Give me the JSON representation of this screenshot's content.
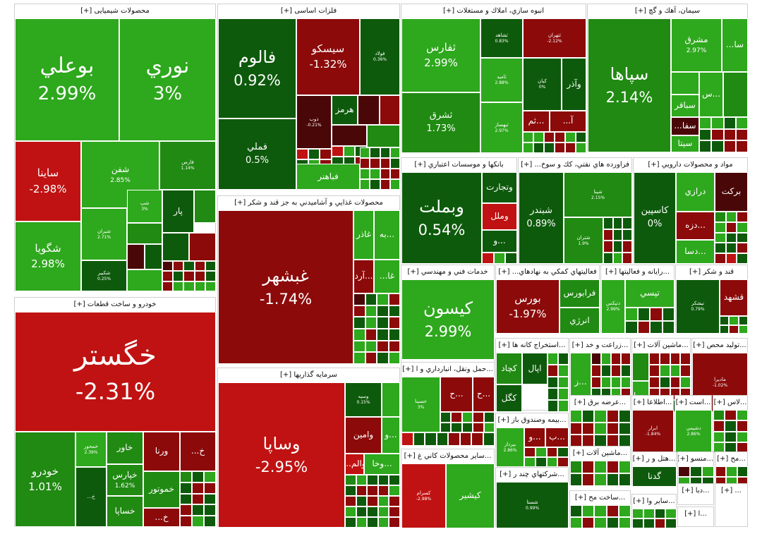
{
  "colors": {
    "pos_strong": "#2ea81d",
    "pos_mid": "#208a12",
    "pos_dark": "#0e5a0c",
    "neg_strong": "#c01212",
    "neg_mid": "#8c0a0a",
    "neg_dark": "#4a0707",
    "flat": "#3a3a3a",
    "bright_red": "#e20d0d"
  },
  "chart_data": {
    "type": "treemap",
    "sectors": [
      {
        "name": "محصولات شیمیایی",
        "expand": "[+]",
        "stocks": [
          {
            "symbol": "بوعلي",
            "change": "2.99%",
            "value": 2.99
          },
          {
            "symbol": "نوري",
            "change": "3%",
            "value": 3
          },
          {
            "symbol": "ساينا",
            "change": "-2.98%",
            "value": -2.98
          },
          {
            "symbol": "شفن",
            "change": "2.85%",
            "value": 2.85
          },
          {
            "symbol": "فارس",
            "change": "1.14%",
            "value": 1.14
          },
          {
            "symbol": "شگويا",
            "change": "2.98%",
            "value": 2.98
          },
          {
            "symbol": "شيران",
            "change": "2.71%",
            "value": 2.71
          },
          {
            "symbol": "شپ",
            "change": "3%",
            "value": 3
          },
          {
            "symbol": "پار",
            "change": "",
            "value": 0.5
          },
          {
            "symbol": "شکبير",
            "change": "0.25%",
            "value": 0.25
          }
        ]
      },
      {
        "name": "فلزات اساسی",
        "expand": "[+]",
        "stocks": [
          {
            "symbol": "فالوم",
            "change": "0.92%",
            "value": 0.92
          },
          {
            "symbol": "سيسكو",
            "change": "-1.32%",
            "value": -1.32
          },
          {
            "symbol": "فولاد",
            "change": "0.36%",
            "value": 0.36
          },
          {
            "symbol": "فملي",
            "change": "0.5%",
            "value": 0.5
          },
          {
            "symbol": "ذوب",
            "change": "-0.21%",
            "value": -0.21
          },
          {
            "symbol": "هرمز",
            "change": "",
            "value": 0.4
          },
          {
            "symbol": "فباهنر",
            "change": "",
            "value": 2.5
          }
        ]
      },
      {
        "name": "انبوه سازي، املاك و مستغلات",
        "expand": "[+]",
        "stocks": [
          {
            "symbol": "ثفارس",
            "change": "2.99%",
            "value": 2.99
          },
          {
            "symbol": "ثشاهد",
            "change": "0.83%",
            "value": 0.83
          },
          {
            "symbol": "ثتهران",
            "change": "-2.12%",
            "value": -2.12
          },
          {
            "symbol": "ثشرق",
            "change": "1.73%",
            "value": 1.73
          },
          {
            "symbol": "ثاميد",
            "change": "2.88%",
            "value": 2.88
          },
          {
            "symbol": "كيان",
            "change": "0%",
            "value": 0
          },
          {
            "symbol": "وآذر",
            "change": "",
            "value": 0.3
          },
          {
            "symbol": "ثبهساز",
            "change": "2.97%",
            "value": 2.97
          },
          {
            "symbol": "...ثم",
            "change": "",
            "value": -1.5
          },
          {
            "symbol": "آ...",
            "change": "",
            "value": -2
          }
        ]
      },
      {
        "name": "سيمان، آهك و گچ",
        "expand": "[+]",
        "stocks": [
          {
            "symbol": "سپاها",
            "change": "2.14%",
            "value": 2.14
          },
          {
            "symbol": "مشرق",
            "change": "2.97%",
            "value": 2.97
          },
          {
            "symbol": "سا...",
            "change": "",
            "value": 2.5
          },
          {
            "symbol": "سباقر",
            "change": "",
            "value": 2.5
          },
          {
            "symbol": "...س",
            "change": "",
            "value": 2.5
          },
          {
            "symbol": "سفا...",
            "change": "",
            "value": -0.8
          },
          {
            "symbol": "سيتا",
            "change": "",
            "value": 2.5
          }
        ]
      },
      {
        "name": "خودرو و ساخت قطعات",
        "expand": "[+]",
        "stocks": [
          {
            "symbol": "خگستر",
            "change": "-2.31%",
            "value": -2.31
          },
          {
            "symbol": "خودرو",
            "change": "1.01%",
            "value": 1.01
          },
          {
            "symbol": "خمحور",
            "change": "2.39%",
            "value": 2.39
          },
          {
            "symbol": "خاور",
            "change": "",
            "value": 1.5
          },
          {
            "symbol": "ورنا",
            "change": "",
            "value": -1.5
          },
          {
            "symbol": "خ...",
            "change": "",
            "value": -1
          },
          {
            "symbol": "خ...",
            "change": "",
            "value": 0.5
          },
          {
            "symbol": "خپارس",
            "change": "1.62%",
            "value": 1.62
          },
          {
            "symbol": "خساپا",
            "change": "",
            "value": 1.5
          },
          {
            "symbol": "خموتور",
            "change": "",
            "value": 1.5
          },
          {
            "symbol": "خ...",
            "change": "",
            "value": -1
          },
          {
            "symbol": "خ...",
            "change": "",
            "value": -2
          }
        ]
      },
      {
        "name": "محصولات غذايي و آشاميدني به جز قند و شكر",
        "expand": "[+]",
        "stocks": [
          {
            "symbol": "غبشهر",
            "change": "-1.74%",
            "value": -1.74
          },
          {
            "symbol": "غاذر",
            "change": "",
            "value": 2.5
          },
          {
            "symbol": "...به",
            "change": "",
            "value": 2.5
          },
          {
            "symbol": "...آرد",
            "change": "",
            "value": -2
          },
          {
            "symbol": "غا...",
            "change": "",
            "value": 2.5
          }
        ]
      },
      {
        "name": "سرمايه گذاريها",
        "expand": "[+]",
        "stocks": [
          {
            "symbol": "وساپا",
            "change": "-2.95%",
            "value": -2.95
          },
          {
            "symbol": "وسپه",
            "change": "0.15%",
            "value": 0.15
          },
          {
            "symbol": "وامين",
            "change": "",
            "value": -1
          },
          {
            "symbol": "...و",
            "change": "",
            "value": 2.5
          },
          {
            "symbol": "والم...",
            "change": "",
            "value": -2.5
          },
          {
            "symbol": "...وخا",
            "change": "",
            "value": 2.5
          }
        ]
      },
      {
        "name": "بانكها و موسسات اعتباري",
        "expand": "[+]",
        "stocks": [
          {
            "symbol": "وبملت",
            "change": "0.54%",
            "value": 0.54
          },
          {
            "symbol": "وتجارت",
            "change": "",
            "value": 0.3
          },
          {
            "symbol": "وملل",
            "change": "",
            "value": -2.5
          },
          {
            "symbol": "...و",
            "change": "",
            "value": 0.3
          }
        ]
      },
      {
        "name": "فراورده هاي نفتي، كك و سوخ...",
        "expand": "[+]",
        "stocks": [
          {
            "symbol": "شبندر",
            "change": "0.89%",
            "value": 0.89
          },
          {
            "symbol": "شپنا",
            "change": "2.15%",
            "value": 2.15
          },
          {
            "symbol": "شتران",
            "change": "1.9%",
            "value": 1.9
          }
        ]
      },
      {
        "name": "مواد و محصولات دارويي",
        "expand": "[+]",
        "stocks": [
          {
            "symbol": "كاسپين",
            "change": "0%",
            "value": 0
          },
          {
            "symbol": "درازي",
            "change": "",
            "value": 2.5
          },
          {
            "symbol": "بركت",
            "change": "",
            "value": -0.5
          },
          {
            "symbol": "...دزه",
            "change": "",
            "value": -2
          },
          {
            "symbol": "...دسا",
            "change": "",
            "value": 2.5
          }
        ]
      },
      {
        "name": "خدمات فني و مهندسي",
        "expand": "[+]",
        "stocks": [
          {
            "symbol": "كيسون",
            "change": "2.99%",
            "value": 2.99
          }
        ]
      },
      {
        "name": "فعاليتهاي كمكي به نهادهاي...",
        "expand": "[+]",
        "stocks": [
          {
            "symbol": "بورس",
            "change": "-1.97%",
            "value": -1.97
          },
          {
            "symbol": "فرابورس",
            "change": "",
            "value": 1.5
          },
          {
            "symbol": "انرژي",
            "change": "",
            "value": 1.5
          }
        ]
      },
      {
        "name": "...رايانه و فعاليتها",
        "expand": "[+]",
        "stocks": [
          {
            "symbol": "تپسي",
            "change": "",
            "value": 2.5
          },
          {
            "symbol": "دتيكس",
            "change": "2.99%",
            "value": 2.99
          }
        ]
      },
      {
        "name": "قند و شكر",
        "expand": "[+]",
        "stocks": [
          {
            "symbol": "قشهد",
            "change": "",
            "value": -2
          },
          {
            "symbol": "نيشكر",
            "change": "0.79%",
            "value": 0.79
          }
        ]
      },
      {
        "name": "...استخراج كانه ها",
        "expand": "[+]",
        "stocks": [
          {
            "symbol": "كچاد",
            "change": "",
            "value": 1
          },
          {
            "symbol": "اپال",
            "change": "",
            "value": 0.8
          },
          {
            "symbol": "كگل",
            "change": "",
            "value": 0.7
          }
        ]
      },
      {
        "name": "...زراعت و خد",
        "expand": "[+]",
        "stocks": [
          {
            "symbol": "...ز",
            "change": "",
            "value": 2.5
          }
        ]
      },
      {
        "name": "...ماشين آلات",
        "expand": "[+]",
        "stocks": [
          {
            "symbol": "بپويا",
            "change": "",
            "value": 2.5
          }
        ]
      },
      {
        "name": "...توليد محص",
        "expand": "[+]",
        "stocks": [
          {
            "symbol": "ماديرا",
            "change": "-1.02%",
            "value": -1.02
          }
        ]
      },
      {
        "name": "...حمل ونقل، انبارداري و ا",
        "expand": "[+]",
        "stocks": [
          {
            "symbol": "حسينا",
            "change": "3%",
            "value": 3
          },
          {
            "symbol": "...ح",
            "change": "",
            "value": -2
          },
          {
            "symbol": "...ح",
            "change": "",
            "value": -1
          }
        ]
      },
      {
        "name": "...عرضه برق",
        "expand": "[+]",
        "stocks": []
      },
      {
        "name": "...اطلاعا",
        "expand": "[+]",
        "stocks": [
          {
            "symbol": "ابرار",
            "change": "-1.84%",
            "value": -1.84
          }
        ]
      },
      {
        "name": "...است",
        "expand": "[+]",
        "stocks": [
          {
            "symbol": "دشيمي",
            "change": "2.86%",
            "value": 2.86
          }
        ]
      },
      {
        "name": "...لاس",
        "expand": "[+]",
        "stocks": []
      },
      {
        "name": "...بيمه وصندوق باز",
        "expand": "[+]",
        "stocks": [
          {
            "symbol": "...و",
            "change": "",
            "value": -1
          },
          {
            "symbol": "...ب",
            "change": "",
            "value": -2
          },
          {
            "symbol": "بپرداز",
            "change": "2.86%",
            "value": 2.86
          }
        ]
      },
      {
        "name": "...ماشين آلات",
        "expand": "[+]",
        "stocks": []
      },
      {
        "name": "...هتل و ر",
        "expand": "[+]",
        "stocks": [
          {
            "symbol": "گدنا",
            "change": "",
            "value": 0.5
          }
        ]
      },
      {
        "name": "...منسو",
        "expand": "[+]",
        "stocks": []
      },
      {
        "name": "...مح",
        "expand": "[+]",
        "stocks": []
      },
      {
        "name": "...ساير محصولات كاني غ",
        "expand": "[+]",
        "stocks": [
          {
            "symbol": "كسرام",
            "change": "-2.98%",
            "value": -2.98
          },
          {
            "symbol": "كيشير",
            "change": "",
            "value": 2.5
          }
        ]
      },
      {
        "name": "...شركتهاي چند ر",
        "expand": "[+]",
        "stocks": [
          {
            "symbol": "شستا",
            "change": "0.99%",
            "value": 0.99
          }
        ]
      },
      {
        "name": "...ساخت مح",
        "expand": "[+]",
        "stocks": []
      },
      {
        "name": "...ساير وا",
        "expand": "[+]",
        "stocks": []
      },
      {
        "name": "...دبا",
        "expand": "[+]",
        "stocks": []
      },
      {
        "name": "...ا",
        "expand": "[+]",
        "stocks": []
      },
      {
        "name": "...",
        "expand": "[+]",
        "stocks": []
      }
    ]
  }
}
